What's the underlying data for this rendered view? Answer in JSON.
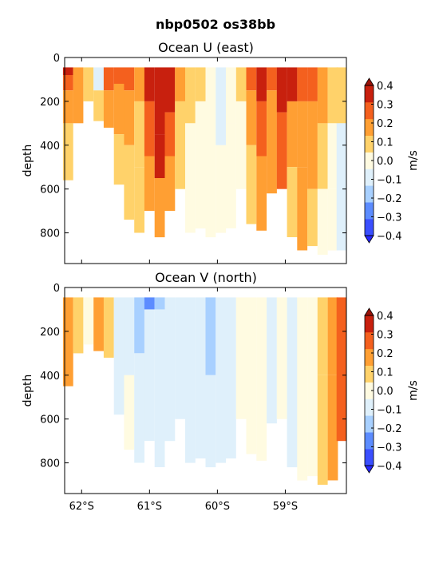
{
  "figure_title": "nbp0502 os38bb",
  "colors": {
    "levels": [
      "#3a4fff",
      "#5c8cff",
      "#a8d0ff",
      "#dff0fb",
      "#fffbe1",
      "#ffd26a",
      "#ff9f33",
      "#f4601e",
      "#c8200e"
    ],
    "extend_low": "#2626ff",
    "extend_high": "#9c1208"
  },
  "chart_data": [
    {
      "type": "heatmap",
      "title": "Ocean U (east)",
      "ylabel": "depth",
      "y_ticks": [
        "0",
        "200",
        "400",
        "600",
        "800"
      ],
      "ylim": [
        940,
        0
      ],
      "x_ticks": [
        "62°S",
        "61°S",
        "60°S",
        "59°S"
      ],
      "x_tick_values": [
        -62,
        -61,
        -60,
        -59
      ],
      "xlim": [
        -62.25,
        -58.1
      ],
      "colorbar_label": "m/s",
      "colorbar_ticks": [
        "0.4",
        "0.3",
        "0.2",
        "0.1",
        "0.0",
        "−0.1",
        "−0.2",
        "−0.3",
        "−0.4"
      ],
      "colorbar_range": [
        -0.4,
        0.4
      ],
      "columns": [
        {
          "lat": -62.2,
          "max_depth": 560,
          "seg": [
            [
              0.35,
              80
            ],
            [
              0.28,
              150
            ],
            [
              0.22,
              300
            ],
            [
              0.12,
              560
            ]
          ]
        },
        {
          "lat": -62.05,
          "max_depth": 300,
          "seg": [
            [
              0.18,
              120
            ],
            [
              0.14,
              300
            ]
          ]
        },
        {
          "lat": -61.9,
          "max_depth": 200,
          "seg": [
            [
              0.05,
              200
            ]
          ]
        },
        {
          "lat": -61.75,
          "max_depth": 290,
          "seg": [
            [
              -0.12,
              150
            ],
            [
              0.05,
              290
            ]
          ]
        },
        {
          "lat": -61.6,
          "max_depth": 320,
          "seg": [
            [
              0.25,
              150
            ],
            [
              0.15,
              320
            ]
          ]
        },
        {
          "lat": -61.45,
          "max_depth": 580,
          "seg": [
            [
              0.28,
              120
            ],
            [
              0.2,
              350
            ],
            [
              0.12,
              580
            ]
          ]
        },
        {
          "lat": -61.3,
          "max_depth": 740,
          "seg": [
            [
              0.3,
              150
            ],
            [
              0.22,
              400
            ],
            [
              0.12,
              740
            ]
          ]
        },
        {
          "lat": -61.15,
          "max_depth": 800,
          "seg": [
            [
              0.22,
              200
            ],
            [
              0.12,
              500
            ],
            [
              0.06,
              800
            ]
          ]
        },
        {
          "lat": -61.0,
          "max_depth": 700,
          "seg": [
            [
              0.42,
              200
            ],
            [
              0.3,
              450
            ],
            [
              0.2,
              700
            ]
          ]
        },
        {
          "lat": -60.85,
          "max_depth": 820,
          "seg": [
            [
              0.42,
              350
            ],
            [
              0.32,
              550
            ],
            [
              0.2,
              820
            ]
          ]
        },
        {
          "lat": -60.7,
          "max_depth": 700,
          "seg": [
            [
              0.35,
              250
            ],
            [
              0.25,
              450
            ],
            [
              0.15,
              700
            ]
          ]
        },
        {
          "lat": -60.55,
          "max_depth": 600,
          "seg": [
            [
              0.2,
              200
            ],
            [
              0.1,
              600
            ]
          ]
        },
        {
          "lat": -60.4,
          "max_depth": 800,
          "seg": [
            [
              0.08,
              300
            ],
            [
              -0.02,
              800
            ]
          ]
        },
        {
          "lat": -60.25,
          "max_depth": 780,
          "seg": [
            [
              0.05,
              200
            ],
            [
              -0.03,
              780
            ]
          ]
        },
        {
          "lat": -60.1,
          "max_depth": 820,
          "seg": [
            [
              -0.04,
              820
            ]
          ]
        },
        {
          "lat": -59.95,
          "max_depth": 800,
          "seg": [
            [
              -0.06,
              400
            ],
            [
              -0.03,
              800
            ]
          ]
        },
        {
          "lat": -59.8,
          "max_depth": 780,
          "seg": [
            [
              0.02,
              300
            ],
            [
              -0.02,
              780
            ]
          ]
        },
        {
          "lat": -59.65,
          "max_depth": 600,
          "seg": [
            [
              0.1,
              200
            ],
            [
              0.04,
              600
            ]
          ]
        },
        {
          "lat": -59.5,
          "max_depth": 760,
          "seg": [
            [
              0.25,
              150
            ],
            [
              0.15,
              400
            ],
            [
              0.08,
              760
            ]
          ]
        },
        {
          "lat": -59.35,
          "max_depth": 790,
          "seg": [
            [
              0.35,
              200
            ],
            [
              0.25,
              450
            ],
            [
              0.15,
              790
            ]
          ]
        },
        {
          "lat": -59.2,
          "max_depth": 620,
          "seg": [
            [
              0.3,
              150
            ],
            [
              0.2,
              620
            ]
          ]
        },
        {
          "lat": -59.05,
          "max_depth": 600,
          "seg": [
            [
              0.42,
              250
            ],
            [
              0.3,
              600
            ]
          ]
        },
        {
          "lat": -58.9,
          "max_depth": 820,
          "seg": [
            [
              0.35,
              200
            ],
            [
              0.22,
              500
            ],
            [
              0.12,
              820
            ]
          ]
        },
        {
          "lat": -58.75,
          "max_depth": 880,
          "seg": [
            [
              0.3,
              200
            ],
            [
              0.22,
              500
            ],
            [
              0.18,
              880
            ]
          ]
        },
        {
          "lat": -58.6,
          "max_depth": 860,
          "seg": [
            [
              0.25,
              200
            ],
            [
              0.15,
              600
            ],
            [
              0.08,
              860
            ]
          ]
        },
        {
          "lat": -58.45,
          "max_depth": 900,
          "seg": [
            [
              0.18,
              300
            ],
            [
              0.08,
              600
            ],
            [
              0.02,
              900
            ]
          ]
        },
        {
          "lat": -58.3,
          "max_depth": 880,
          "seg": [
            [
              0.12,
              300
            ],
            [
              0.03,
              600
            ],
            [
              -0.04,
              880
            ]
          ]
        },
        {
          "lat": -58.17,
          "max_depth": 880,
          "seg": [
            [
              0.05,
              300
            ],
            [
              -0.05,
              880
            ]
          ]
        }
      ]
    },
    {
      "type": "heatmap",
      "title": "Ocean V (north)",
      "ylabel": "depth",
      "y_ticks": [
        "0",
        "200",
        "400",
        "600",
        "800"
      ],
      "ylim": [
        940,
        0
      ],
      "x_ticks": [
        "62°S",
        "61°S",
        "60°S",
        "59°S"
      ],
      "x_tick_values": [
        -62,
        -61,
        -60,
        -59
      ],
      "xlim": [
        -62.25,
        -58.1
      ],
      "colorbar_label": "m/s",
      "colorbar_ticks": [
        "0.4",
        "0.3",
        "0.2",
        "0.1",
        "0.0",
        "−0.1",
        "−0.2",
        "−0.3",
        "−0.4"
      ],
      "colorbar_range": [
        -0.4,
        0.4
      ],
      "columns": [
        {
          "lat": -62.2,
          "max_depth": 450,
          "seg": [
            [
              0.15,
              450
            ]
          ]
        },
        {
          "lat": -62.05,
          "max_depth": 300,
          "seg": [
            [
              0.05,
              300
            ]
          ]
        },
        {
          "lat": -61.9,
          "max_depth": 260,
          "seg": [
            [
              0.02,
              260
            ]
          ]
        },
        {
          "lat": -61.75,
          "max_depth": 290,
          "seg": [
            [
              0.18,
              290
            ]
          ]
        },
        {
          "lat": -61.6,
          "max_depth": 320,
          "seg": [
            [
              0.05,
              320
            ]
          ]
        },
        {
          "lat": -61.45,
          "max_depth": 580,
          "seg": [
            [
              -0.05,
              580
            ]
          ]
        },
        {
          "lat": -61.3,
          "max_depth": 740,
          "seg": [
            [
              -0.08,
              400
            ],
            [
              -0.04,
              740
            ]
          ]
        },
        {
          "lat": -61.15,
          "max_depth": 800,
          "seg": [
            [
              -0.14,
              300
            ],
            [
              -0.08,
              800
            ]
          ]
        },
        {
          "lat": -61.0,
          "max_depth": 700,
          "seg": [
            [
              -0.25,
              100
            ],
            [
              -0.12,
              700
            ]
          ]
        },
        {
          "lat": -60.85,
          "max_depth": 820,
          "seg": [
            [
              -0.2,
              100
            ],
            [
              -0.1,
              820
            ]
          ]
        },
        {
          "lat": -60.7,
          "max_depth": 700,
          "seg": [
            [
              -0.12,
              700
            ]
          ]
        },
        {
          "lat": -60.55,
          "max_depth": 600,
          "seg": [
            [
              -0.05,
              600
            ]
          ]
        },
        {
          "lat": -60.4,
          "max_depth": 800,
          "seg": [
            [
              -0.08,
              800
            ]
          ]
        },
        {
          "lat": -60.25,
          "max_depth": 780,
          "seg": [
            [
              -0.12,
              780
            ]
          ]
        },
        {
          "lat": -60.1,
          "max_depth": 820,
          "seg": [
            [
              -0.15,
              400
            ],
            [
              -0.1,
              820
            ]
          ]
        },
        {
          "lat": -59.95,
          "max_depth": 800,
          "seg": [
            [
              -0.12,
              800
            ]
          ]
        },
        {
          "lat": -59.8,
          "max_depth": 780,
          "seg": [
            [
              -0.06,
              780
            ]
          ]
        },
        {
          "lat": -59.65,
          "max_depth": 600,
          "seg": [
            [
              0.02,
              600
            ]
          ]
        },
        {
          "lat": -59.5,
          "max_depth": 760,
          "seg": [
            [
              0.04,
              760
            ]
          ]
        },
        {
          "lat": -59.35,
          "max_depth": 790,
          "seg": [
            [
              -0.02,
              790
            ]
          ]
        },
        {
          "lat": -59.2,
          "max_depth": 620,
          "seg": [
            [
              -0.05,
              620
            ]
          ]
        },
        {
          "lat": -59.05,
          "max_depth": 600,
          "seg": [
            [
              -0.03,
              600
            ]
          ]
        },
        {
          "lat": -58.9,
          "max_depth": 820,
          "seg": [
            [
              -0.05,
              820
            ]
          ]
        },
        {
          "lat": -58.75,
          "max_depth": 880,
          "seg": [
            [
              -0.02,
              880
            ]
          ]
        },
        {
          "lat": -58.6,
          "max_depth": 860,
          "seg": [
            [
              0.03,
              860
            ]
          ]
        },
        {
          "lat": -58.45,
          "max_depth": 900,
          "seg": [
            [
              0.12,
              400
            ],
            [
              0.06,
              900
            ]
          ]
        },
        {
          "lat": -58.3,
          "max_depth": 880,
          "seg": [
            [
              0.22,
              400
            ],
            [
              0.15,
              880
            ]
          ]
        },
        {
          "lat": -58.17,
          "max_depth": 700,
          "seg": [
            [
              0.25,
              700
            ]
          ]
        }
      ]
    }
  ]
}
